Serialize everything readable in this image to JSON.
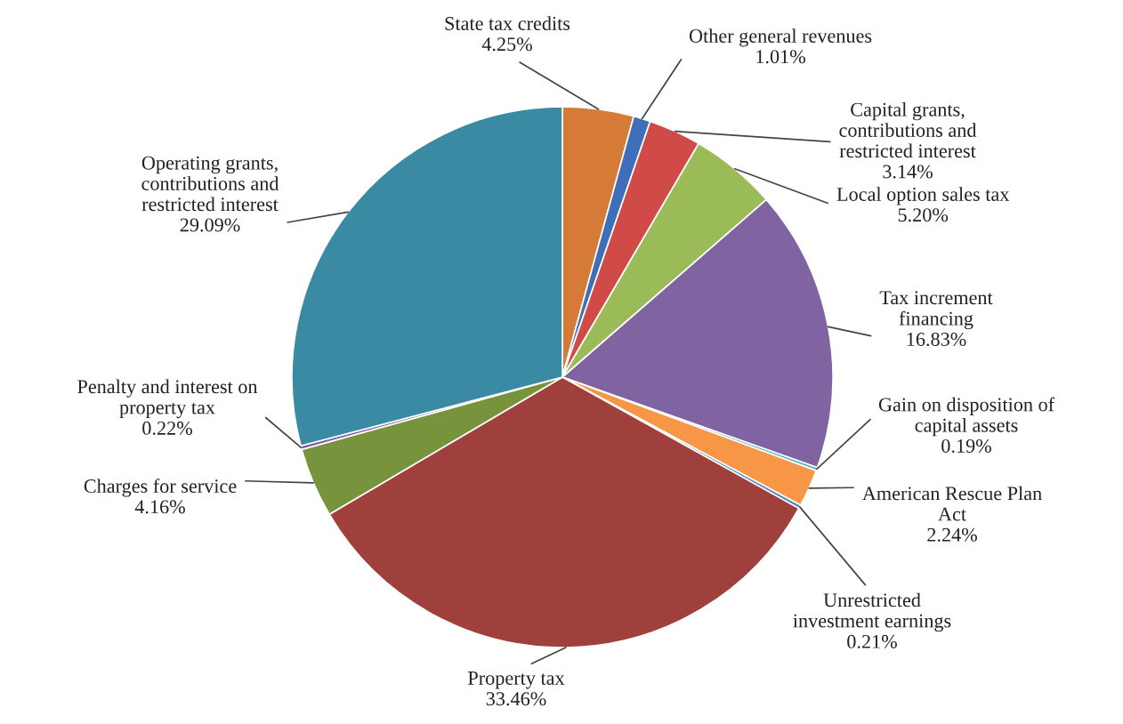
{
  "chart_data": {
    "type": "pie",
    "categories": [
      "State tax credits",
      "Other general revenues",
      "Capital grants,\ncontributions and\nrestricted interest",
      "Local option sales tax",
      "Tax increment\nfinancing",
      "Gain on disposition of\ncapital assets",
      "American Rescue Plan\nAct",
      "Unrestricted\ninvestment earnings",
      "Property tax",
      "Charges for service",
      "Penalty and interest on\nproperty tax",
      "Operating grants,\ncontributions and\nrestricted interest"
    ],
    "values": [
      4.25,
      1.01,
      3.14,
      5.2,
      16.83,
      0.19,
      2.24,
      0.21,
      33.46,
      4.16,
      0.22,
      29.09
    ],
    "value_labels": [
      "4.25%",
      "1.01%",
      "3.14%",
      "5.20%",
      "16.83%",
      "0.19%",
      "2.24%",
      "0.21%",
      "33.46%",
      "4.16%",
      "0.22%",
      "29.09%"
    ],
    "colors": [
      "#d67a38",
      "#3f6fb8",
      "#d04a48",
      "#9bbb59",
      "#8064a2",
      "#4bacc6",
      "#f79646",
      "#4f81bd",
      "#a0403c",
      "#77933c",
      "#7f5f9f",
      "#3b8aa3"
    ],
    "legend": false
  }
}
